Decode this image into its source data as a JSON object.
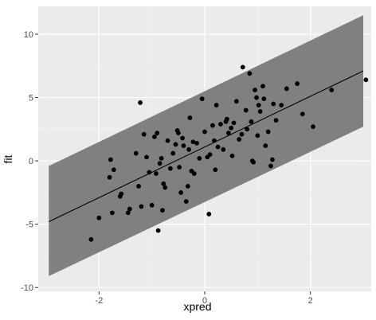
{
  "chart_data": {
    "type": "scatter",
    "xlabel": "xpred",
    "ylabel": "fit",
    "xlim": [
      -3.15,
      3.15
    ],
    "ylim": [
      -10.3,
      12.2
    ],
    "x_ticks": [
      -2,
      0,
      2
    ],
    "x_tick_labels": [
      "-2",
      "0",
      "2"
    ],
    "y_ticks": [
      -10,
      -5,
      0,
      5,
      10
    ],
    "y_tick_labels": [
      "-10",
      "-5",
      "0",
      "5",
      "10"
    ],
    "grid": true,
    "legend": "none",
    "colors": {
      "panel": "#ebebeb",
      "grid_major": "#ffffff",
      "grid_minor": "#f5f5f5",
      "band": "#808080",
      "line": "#000000",
      "points": "#000000"
    },
    "fit_line": {
      "x": [
        -2.95,
        3.0
      ],
      "y": [
        -4.8,
        7.1
      ]
    },
    "prediction_band": {
      "x": [
        -2.95,
        3.0
      ],
      "lower": [
        -9.1,
        2.7
      ],
      "upper": [
        -0.4,
        11.5
      ]
    },
    "points": [
      [
        -2.15,
        -6.2
      ],
      [
        -2.0,
        -4.5
      ],
      [
        -1.8,
        -1.3
      ],
      [
        -1.78,
        0.1
      ],
      [
        -1.75,
        -4.1
      ],
      [
        -1.72,
        -0.7
      ],
      [
        -1.6,
        -2.8
      ],
      [
        -1.58,
        -2.6
      ],
      [
        -1.45,
        -4.1
      ],
      [
        -1.42,
        -3.8
      ],
      [
        -1.3,
        0.6
      ],
      [
        -1.25,
        -2.0
      ],
      [
        -1.22,
        4.6
      ],
      [
        -1.2,
        -3.6
      ],
      [
        -1.15,
        2.1
      ],
      [
        -1.1,
        0.3
      ],
      [
        -1.05,
        -0.9
      ],
      [
        -1.0,
        -3.5
      ],
      [
        -0.95,
        1.9
      ],
      [
        -0.92,
        -1.0
      ],
      [
        -0.9,
        2.2
      ],
      [
        -0.88,
        -5.5
      ],
      [
        -0.85,
        -0.2
      ],
      [
        -0.82,
        0.2
      ],
      [
        -0.8,
        -3.9
      ],
      [
        -0.78,
        -1.8
      ],
      [
        -0.75,
        -2.1
      ],
      [
        -0.7,
        1.6
      ],
      [
        -0.65,
        -0.6
      ],
      [
        -0.6,
        0.6
      ],
      [
        -0.55,
        1.3
      ],
      [
        -0.52,
        2.4
      ],
      [
        -0.5,
        2.2
      ],
      [
        -0.48,
        -0.5
      ],
      [
        -0.45,
        -2.5
      ],
      [
        -0.42,
        1.8
      ],
      [
        -0.4,
        1.2
      ],
      [
        -0.35,
        -3.2
      ],
      [
        -0.32,
        -2.0
      ],
      [
        -0.3,
        0.9
      ],
      [
        -0.28,
        3.4
      ],
      [
        -0.25,
        -0.8
      ],
      [
        -0.22,
        1.5
      ],
      [
        -0.2,
        -1.0
      ],
      [
        -0.15,
        1.4
      ],
      [
        -0.1,
        0.2
      ],
      [
        -0.05,
        4.9
      ],
      [
        0.0,
        2.3
      ],
      [
        0.05,
        0.3
      ],
      [
        0.08,
        -4.2
      ],
      [
        0.1,
        0.5
      ],
      [
        0.15,
        2.8
      ],
      [
        0.18,
        1.6
      ],
      [
        0.2,
        -0.7
      ],
      [
        0.22,
        4.4
      ],
      [
        0.25,
        1.1
      ],
      [
        0.3,
        2.9
      ],
      [
        0.35,
        0.9
      ],
      [
        0.4,
        3.1
      ],
      [
        0.42,
        3.3
      ],
      [
        0.45,
        2.2
      ],
      [
        0.5,
        2.6
      ],
      [
        0.52,
        0.4
      ],
      [
        0.55,
        3.0
      ],
      [
        0.6,
        4.7
      ],
      [
        0.65,
        1.7
      ],
      [
        0.7,
        2.1
      ],
      [
        0.72,
        7.4
      ],
      [
        0.78,
        4.0
      ],
      [
        0.8,
        2.5
      ],
      [
        0.85,
        6.9
      ],
      [
        0.88,
        3.1
      ],
      [
        0.9,
        0.0
      ],
      [
        0.92,
        -0.1
      ],
      [
        0.95,
        5.6
      ],
      [
        0.98,
        5.0
      ],
      [
        1.0,
        2.0
      ],
      [
        1.02,
        4.4
      ],
      [
        1.05,
        3.9
      ],
      [
        1.1,
        5.9
      ],
      [
        1.12,
        4.9
      ],
      [
        1.15,
        1.2
      ],
      [
        1.2,
        2.3
      ],
      [
        1.25,
        -0.4
      ],
      [
        1.28,
        0.1
      ],
      [
        1.3,
        4.5
      ],
      [
        1.35,
        3.2
      ],
      [
        1.45,
        4.4
      ],
      [
        1.55,
        5.7
      ],
      [
        1.75,
        6.1
      ],
      [
        1.85,
        3.7
      ],
      [
        2.05,
        2.7
      ],
      [
        2.4,
        5.6
      ],
      [
        3.05,
        6.4
      ]
    ]
  }
}
